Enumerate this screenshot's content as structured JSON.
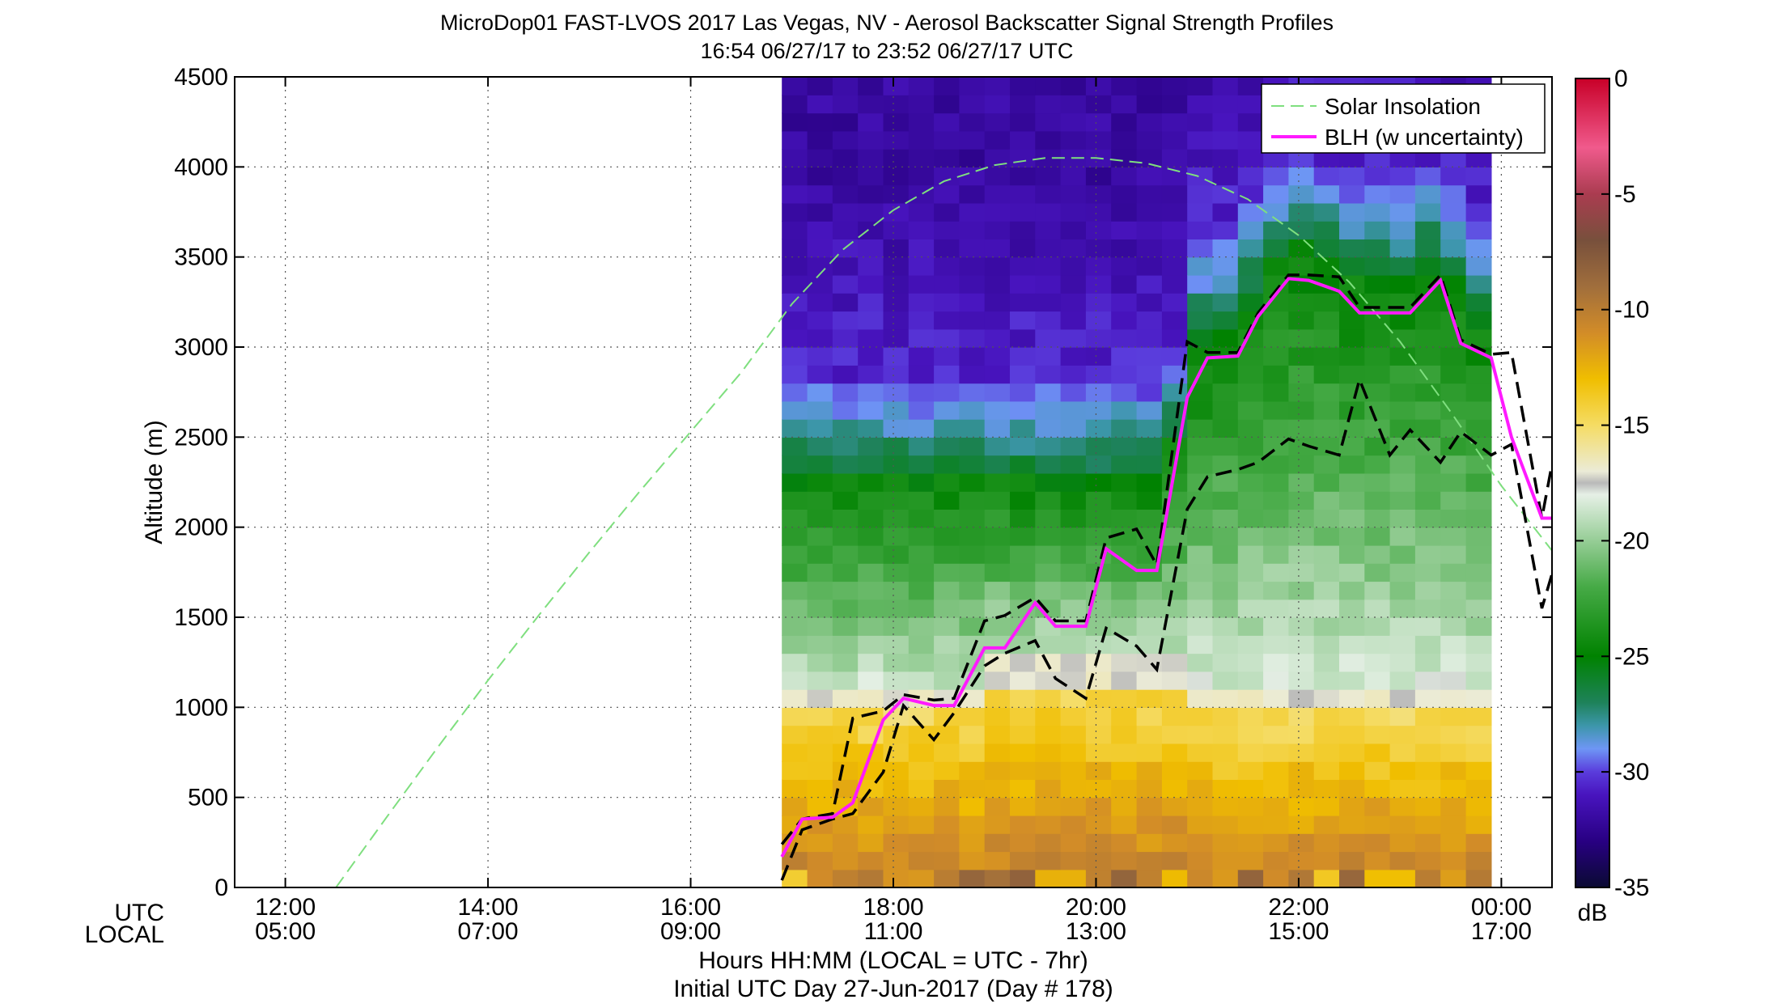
{
  "chart_data": {
    "type": "heatmap",
    "title": "MicroDop01 FAST-LVOS 2017 Las Vegas, NV - Aerosol Backscatter Signal Strength Profiles",
    "subtitle": "16:54 06/27/17 to 23:52 06/27/17  UTC",
    "ylabel": "Altitude (m)",
    "xlabel": "Hours HH:MM  (LOCAL = UTC - 7hr)",
    "xlabel2": "Initial UTC Day 27-Jun-2017 (Day # 178)",
    "axis_row_labels": [
      "UTC",
      "LOCAL"
    ],
    "x_range_hours_utc": [
      11.5,
      24.5
    ],
    "ylim": [
      0,
      4500
    ],
    "yticks": [
      0,
      500,
      1000,
      1500,
      2000,
      2500,
      3000,
      3500,
      4000,
      4500
    ],
    "xticks": [
      {
        "hour": 12,
        "utc": "12:00",
        "local": "05:00"
      },
      {
        "hour": 14,
        "utc": "14:00",
        "local": "07:00"
      },
      {
        "hour": 16,
        "utc": "16:00",
        "local": "09:00"
      },
      {
        "hour": 18,
        "utc": "18:00",
        "local": "11:00"
      },
      {
        "hour": 20,
        "utc": "20:00",
        "local": "13:00"
      },
      {
        "hour": 22,
        "utc": "22:00",
        "local": "15:00"
      },
      {
        "hour": 24,
        "utc": "00:00",
        "local": "17:00"
      }
    ],
    "grid": true,
    "legend": {
      "placement": "top-right",
      "entries": [
        {
          "label": "Solar Insolation",
          "style": "dashed",
          "color": "#7fdf7f"
        },
        {
          "label": "BLH (w uncertainty)",
          "style": "solid",
          "color": "#ff1aff"
        }
      ]
    },
    "colorbar": {
      "unit": "dB",
      "range": [
        -35,
        0
      ],
      "ticks": [
        "0",
        "-5",
        "-10",
        "-15",
        "-20",
        "-25",
        "-30",
        "-35"
      ]
    },
    "heatmap_time_range_hours_utc": [
      16.9,
      23.9
    ],
    "solar_insolation": {
      "x": [
        12.5,
        13.0,
        13.5,
        14.0,
        14.5,
        15.0,
        15.5,
        16.0,
        16.5,
        17.0,
        17.5,
        18.0,
        18.5,
        19.0,
        19.5,
        20.0,
        20.5,
        21.0,
        21.5,
        22.0,
        22.5,
        23.0,
        23.5,
        24.0,
        24.5
      ],
      "y": [
        0,
        390,
        775,
        1150,
        1510,
        1860,
        2200,
        2530,
        2860,
        3240,
        3540,
        3760,
        3920,
        4010,
        4050,
        4050,
        4020,
        3950,
        3820,
        3620,
        3360,
        3030,
        2640,
        2230,
        1870
      ]
    },
    "blh": {
      "x": [
        16.9,
        17.1,
        17.4,
        17.6,
        17.9,
        18.1,
        18.4,
        18.6,
        18.9,
        19.1,
        19.4,
        19.6,
        19.9,
        20.1,
        20.4,
        20.6,
        20.9,
        21.1,
        21.4,
        21.6,
        21.9,
        22.1,
        22.4,
        22.6,
        22.9,
        23.1,
        23.4,
        23.6,
        23.9,
        24.1,
        24.4,
        24.5
      ],
      "y": [
        170,
        380,
        390,
        470,
        930,
        1050,
        1010,
        1010,
        1330,
        1330,
        1580,
        1450,
        1450,
        1880,
        1760,
        1760,
        2720,
        2940,
        2950,
        3170,
        3380,
        3370,
        3310,
        3190,
        3190,
        3190,
        3370,
        3020,
        2940,
        2500,
        2050,
        2050
      ]
    },
    "blh_upper": {
      "x": [
        16.9,
        17.1,
        17.4,
        17.6,
        17.9,
        18.1,
        18.4,
        18.6,
        18.9,
        19.1,
        19.4,
        19.6,
        19.9,
        20.1,
        20.4,
        20.6,
        20.9,
        21.1,
        21.4,
        21.6,
        21.9,
        22.1,
        22.4,
        22.6,
        22.9,
        23.1,
        23.4,
        23.6,
        23.9,
        24.1,
        24.4,
        24.5
      ],
      "y": [
        240,
        380,
        410,
        940,
        980,
        1070,
        1040,
        1050,
        1480,
        1510,
        1610,
        1480,
        1480,
        1940,
        1990,
        1790,
        3030,
        2970,
        2970,
        3190,
        3400,
        3400,
        3390,
        3220,
        3220,
        3220,
        3400,
        3040,
        2960,
        2970,
        2050,
        2350
      ]
    },
    "blh_lower": {
      "x": [
        16.9,
        17.1,
        17.4,
        17.6,
        17.9,
        18.1,
        18.4,
        18.6,
        18.9,
        19.1,
        19.4,
        19.6,
        19.9,
        20.1,
        20.4,
        20.6,
        20.9,
        21.1,
        21.4,
        21.6,
        21.9,
        22.1,
        22.4,
        22.6,
        22.9,
        23.1,
        23.4,
        23.6,
        23.9,
        24.1,
        24.4,
        24.5
      ],
      "y": [
        40,
        320,
        380,
        410,
        640,
        1010,
        820,
        970,
        1230,
        1300,
        1370,
        1160,
        1050,
        1440,
        1340,
        1210,
        2100,
        2280,
        2320,
        2360,
        2490,
        2450,
        2400,
        2820,
        2400,
        2540,
        2360,
        2530,
        2400,
        2460,
        1550,
        1740
      ]
    },
    "profile_notes": "Each 15-min profile: ~-11 dB near surface (brown/orange), -15 dB at ~1000 m (yellow/white), -20 to -25 dB (green) up to ~2300-3000 m, -30 dB (blue) near 2700-3200 m, ~-31 dB (purple) aloft"
  }
}
